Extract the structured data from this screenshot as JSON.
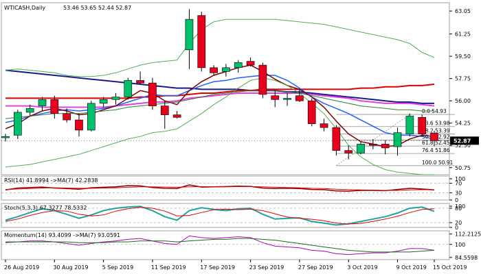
{
  "chart_data": {
    "type": "candlestick",
    "title": "WTICASH,Daily",
    "ohlc_header": "53.46 53.65 52.44 52.87",
    "current_price": 52.87,
    "colors": {
      "bull": "#00c06a",
      "bear": "#e8001c",
      "grid": "#d8d8d8",
      "frame": "#a0a0a0"
    },
    "x_labels": [
      "26 Aug 2019",
      "30 Aug 2019",
      "5 Sep 2019",
      "11 Sep 2019",
      "17 Sep 2019",
      "23 Sep 2019",
      "27 Sep 2019",
      "3 Oct 2019",
      "9 Oct 2019",
      "15 Oct 2019"
    ],
    "main": {
      "ylim": [
        50.2,
        63.7
      ],
      "y_ticks": [
        "63.05",
        "61.25",
        "59.50",
        "57.75",
        "56.00",
        "54.25",
        "52.50",
        "50.75"
      ],
      "candles": [
        {
          "o": 53.1,
          "h": 53.4,
          "l": 52.8,
          "c": 53.2
        },
        {
          "o": 53.3,
          "h": 55.3,
          "l": 53.0,
          "c": 55.1
        },
        {
          "o": 55.1,
          "h": 55.7,
          "l": 54.8,
          "c": 55.4
        },
        {
          "o": 55.6,
          "h": 56.3,
          "l": 55.2,
          "c": 56.1
        },
        {
          "o": 56.1,
          "h": 56.4,
          "l": 54.6,
          "c": 55.0
        },
        {
          "o": 55.0,
          "h": 55.4,
          "l": 54.3,
          "c": 54.5
        },
        {
          "o": 54.5,
          "h": 55.0,
          "l": 53.2,
          "c": 53.7
        },
        {
          "o": 53.7,
          "h": 56.0,
          "l": 53.6,
          "c": 55.8
        },
        {
          "o": 55.8,
          "h": 56.3,
          "l": 55.5,
          "c": 56.1
        },
        {
          "o": 56.1,
          "h": 56.6,
          "l": 55.7,
          "c": 56.3
        },
        {
          "o": 56.3,
          "h": 57.8,
          "l": 56.1,
          "c": 57.6
        },
        {
          "o": 57.6,
          "h": 58.3,
          "l": 57.3,
          "c": 57.4
        },
        {
          "o": 57.4,
          "h": 57.8,
          "l": 55.3,
          "c": 55.6
        },
        {
          "o": 55.6,
          "h": 56.0,
          "l": 53.8,
          "c": 54.9
        },
        {
          "o": 54.9,
          "h": 55.2,
          "l": 54.6,
          "c": 54.7
        },
        {
          "o": 60.0,
          "h": 63.2,
          "l": 58.5,
          "c": 62.4
        },
        {
          "o": 62.7,
          "h": 63.0,
          "l": 58.3,
          "c": 58.6
        },
        {
          "o": 58.6,
          "h": 58.8,
          "l": 58.0,
          "c": 58.2
        },
        {
          "o": 58.3,
          "h": 58.9,
          "l": 57.9,
          "c": 58.6
        },
        {
          "o": 58.6,
          "h": 59.2,
          "l": 58.2,
          "c": 59.0
        },
        {
          "o": 59.1,
          "h": 59.4,
          "l": 58.7,
          "c": 58.8
        },
        {
          "o": 58.8,
          "h": 59.0,
          "l": 56.2,
          "c": 56.5
        },
        {
          "o": 56.4,
          "h": 56.8,
          "l": 55.5,
          "c": 56.1
        },
        {
          "o": 56.1,
          "h": 56.6,
          "l": 55.6,
          "c": 56.2
        },
        {
          "o": 56.4,
          "h": 56.9,
          "l": 55.9,
          "c": 56.0
        },
        {
          "o": 56.0,
          "h": 56.2,
          "l": 54.0,
          "c": 54.2
        },
        {
          "o": 54.2,
          "h": 54.6,
          "l": 53.6,
          "c": 53.9
        },
        {
          "o": 53.9,
          "h": 54.1,
          "l": 51.7,
          "c": 52.1
        },
        {
          "o": 52.1,
          "h": 52.5,
          "l": 51.4,
          "c": 51.9
        },
        {
          "o": 51.9,
          "h": 52.8,
          "l": 51.8,
          "c": 52.6
        },
        {
          "o": 52.6,
          "h": 53.0,
          "l": 52.2,
          "c": 52.5
        },
        {
          "o": 52.6,
          "h": 52.9,
          "l": 51.8,
          "c": 52.3
        },
        {
          "o": 52.4,
          "h": 53.9,
          "l": 51.7,
          "c": 53.5
        },
        {
          "o": 53.4,
          "h": 55.0,
          "l": 53.2,
          "c": 54.8
        },
        {
          "o": 54.7,
          "h": 54.9,
          "l": 53.2,
          "c": 53.4
        },
        {
          "o": 53.46,
          "h": 53.65,
          "l": 52.44,
          "c": 52.87
        }
      ],
      "fibo_levels": [
        {
          "label": "0.0 54.93",
          "value": 54.93
        },
        {
          "label": "23.6 53.98",
          "value": 53.98
        },
        {
          "label": "38.2 53.39",
          "value": 53.39
        },
        {
          "label": "50.0 52.92",
          "value": 52.92
        },
        {
          "label": "61.8 52.45",
          "value": 52.45
        },
        {
          "label": "76.4 51.86",
          "value": 51.86
        },
        {
          "label": "100.0 50.91",
          "value": 50.91
        }
      ],
      "lines": [
        {
          "color": "#1a1a8c",
          "width": 2,
          "values": [
            58.4,
            58.3,
            58.2,
            58.1,
            58.0,
            57.9,
            57.8,
            57.7,
            57.6,
            57.5,
            57.4,
            57.3,
            57.2,
            57.1,
            57.0,
            57.0,
            56.9,
            56.9,
            56.9,
            56.9,
            56.8,
            56.8,
            56.8,
            56.7,
            56.7,
            56.6,
            56.5,
            56.4,
            56.3,
            56.2,
            56.1,
            56.0,
            55.9,
            55.9,
            55.8,
            55.8
          ]
        },
        {
          "color": "#dd0000",
          "width": 2,
          "values": [
            56.2,
            56.2,
            56.2,
            56.2,
            56.2,
            56.2,
            56.2,
            56.2,
            56.2,
            56.2,
            56.2,
            56.3,
            56.3,
            56.4,
            56.4,
            56.5,
            56.6,
            56.6,
            56.7,
            56.8,
            56.8,
            56.9,
            56.9,
            56.9,
            56.9,
            56.9,
            56.9,
            56.9,
            56.9,
            57.0,
            57.0,
            57.1,
            57.1,
            57.2,
            57.2,
            57.3
          ]
        },
        {
          "color": "#e040e0",
          "width": 2,
          "values": [
            55.6,
            55.6,
            55.6,
            55.5,
            55.5,
            55.5,
            55.5,
            55.5,
            55.5,
            55.6,
            55.7,
            55.8,
            55.9,
            55.9,
            56.0,
            56.2,
            56.3,
            56.4,
            56.5,
            56.6,
            56.6,
            56.6,
            56.6,
            56.6,
            56.6,
            56.5,
            56.4,
            56.3,
            56.2,
            56.0,
            55.9,
            55.8,
            55.8,
            55.8,
            55.7,
            55.6
          ]
        },
        {
          "color": "#2060ff",
          "width": 1.5,
          "values": [
            54.3,
            54.5,
            54.8,
            55.0,
            55.2,
            55.3,
            55.2,
            55.3,
            55.4,
            55.6,
            55.9,
            56.2,
            56.5,
            56.4,
            56.4,
            56.8,
            57.2,
            57.5,
            57.6,
            57.8,
            57.9,
            58.0,
            58.0,
            57.6,
            57.0,
            56.3,
            55.8,
            55.4,
            55.0,
            54.5,
            54.0,
            53.5,
            53.3,
            53.3,
            53.2,
            53.0
          ]
        },
        {
          "color": "#7a0000",
          "width": 1.5,
          "values": [
            53.8,
            54.2,
            54.8,
            55.2,
            55.4,
            55.2,
            54.9,
            55.0,
            55.3,
            55.6,
            56.2,
            56.8,
            56.6,
            56.0,
            55.7,
            56.8,
            57.5,
            58.0,
            58.3,
            58.6,
            58.8,
            58.3,
            57.7,
            57.2,
            56.9,
            56.3,
            55.5,
            54.4,
            53.4,
            52.8,
            52.6,
            52.4,
            52.5,
            53.0,
            53.3,
            53.2
          ]
        },
        {
          "color": "#4caf50",
          "width": 1,
          "values": [
            50.8,
            50.9,
            51.0,
            51.2,
            51.4,
            51.6,
            51.8,
            52.1,
            52.4,
            52.7,
            53.0,
            53.2,
            53.5,
            53.6,
            53.8,
            54.4,
            55.0,
            55.7,
            56.3,
            57.0,
            57.6,
            57.8,
            57.6,
            57.2,
            56.6,
            55.8,
            55.0,
            53.8,
            52.5,
            51.6,
            51.0,
            50.6,
            50.4,
            50.3,
            50.2,
            50.2
          ]
        },
        {
          "color": "#4caf50",
          "width": 1,
          "values": [
            58.4,
            58.5,
            58.4,
            58.3,
            58.2,
            58.0,
            57.9,
            57.9,
            58.0,
            58.2,
            58.5,
            58.8,
            59.0,
            59.1,
            59.2,
            60.5,
            61.6,
            62.2,
            62.4,
            62.4,
            62.4,
            62.4,
            62.4,
            62.3,
            62.2,
            62.1,
            62.0,
            61.8,
            61.6,
            61.4,
            61.2,
            61.0,
            60.8,
            60.5,
            59.8,
            59.4
          ]
        },
        {
          "color": "#2e7d32",
          "width": 1,
          "values": [
            54.6,
            54.7,
            54.8,
            54.9,
            55.0,
            55.0,
            55.0,
            55.1,
            55.2,
            55.3,
            55.5,
            55.6,
            55.7,
            55.8,
            55.9,
            56.1,
            56.3,
            56.5,
            56.6,
            56.7,
            56.8,
            56.8,
            56.8,
            56.7,
            56.6,
            56.4,
            56.2,
            56.0,
            55.8,
            55.6,
            55.5,
            55.4,
            55.3,
            55.3,
            55.2,
            55.2
          ]
        }
      ]
    },
    "rsi": {
      "label": "RSI(14) 41.8994 ->MA(7) 42.2838",
      "ylim": [
        0,
        100
      ],
      "y_ticks": [
        "100",
        "70",
        "30",
        "0"
      ],
      "levels": [
        70,
        30
      ],
      "series": [
        {
          "color": "#8b0000",
          "width": 1.5,
          "values": [
            42,
            50,
            52,
            54,
            50,
            48,
            45,
            51,
            53,
            55,
            60,
            59,
            52,
            49,
            48,
            63,
            54,
            55,
            56,
            58,
            57,
            50,
            48,
            49,
            48,
            44,
            43,
            38,
            37,
            40,
            40,
            39,
            44,
            49,
            46,
            42
          ]
        },
        {
          "color": "#e00000",
          "width": 1,
          "values": [
            44,
            46,
            48,
            50,
            51,
            50,
            49,
            49,
            50,
            51,
            53,
            55,
            55,
            54,
            53,
            55,
            56,
            55,
            55,
            56,
            56,
            55,
            53,
            52,
            51,
            49,
            48,
            45,
            43,
            42,
            41,
            40,
            40,
            42,
            43,
            42
          ]
        }
      ]
    },
    "stoch": {
      "label": "Stoch(5,3,3) 67.3277 78.5332",
      "ylim": [
        0,
        100
      ],
      "y_ticks": [
        "100",
        "80",
        "20",
        "0"
      ],
      "levels": [
        80,
        20
      ],
      "series": [
        {
          "color": "#20a0a0",
          "width": 2,
          "values": [
            30,
            45,
            62,
            78,
            70,
            55,
            38,
            52,
            70,
            80,
            85,
            88,
            70,
            45,
            30,
            70,
            82,
            75,
            70,
            78,
            80,
            55,
            35,
            38,
            40,
            25,
            18,
            10,
            15,
            25,
            35,
            45,
            60,
            80,
            85,
            67
          ]
        },
        {
          "color": "#e00000",
          "width": 1,
          "values": [
            25,
            35,
            50,
            62,
            70,
            68,
            55,
            48,
            52,
            68,
            78,
            84,
            80,
            68,
            48,
            50,
            62,
            74,
            76,
            74,
            76,
            70,
            57,
            43,
            38,
            34,
            28,
            18,
            14,
            17,
            25,
            35,
            47,
            62,
            75,
            78
          ]
        }
      ]
    },
    "momentum": {
      "label": "Momentum(14) 93.4099 ->MA(7) 93.0591",
      "ylim": [
        82,
        116
      ],
      "y_ticks": [
        "112.2125",
        "100",
        "84.5598"
      ],
      "levels": [
        100
      ],
      "series": [
        {
          "color": "#b000b0",
          "width": 1,
          "values": [
            102,
            103,
            104,
            104,
            103,
            101,
            99,
            101,
            103,
            104,
            106,
            107,
            104,
            101,
            100,
            110,
            108,
            107,
            108,
            109,
            108,
            102,
            98,
            97,
            96,
            93,
            92,
            89,
            88,
            89,
            90,
            90,
            92,
            95,
            95,
            93
          ]
        },
        {
          "color": "#107010",
          "width": 1,
          "values": [
            103,
            103,
            103,
            103,
            103,
            103,
            102,
            102,
            102,
            103,
            103,
            104,
            104,
            104,
            103,
            104,
            105,
            106,
            106,
            107,
            107,
            106,
            105,
            103,
            101,
            99,
            97,
            95,
            93,
            92,
            91,
            91,
            91,
            91,
            92,
            93
          ]
        }
      ]
    }
  }
}
